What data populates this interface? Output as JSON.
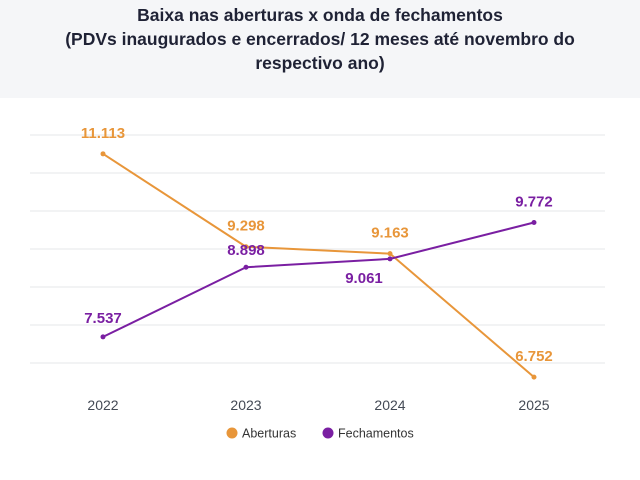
{
  "chart_data": {
    "type": "line",
    "title_lines": [
      "Baixa nas aberturas x onda de fechamentos",
      "(PDVs inaugurados e encerrados/ 12 meses até novembro do",
      "respectivo ano)"
    ],
    "categories": [
      "2022",
      "2023",
      "2024",
      "2025"
    ],
    "ylim": [
      6500,
      11500
    ],
    "grid": true,
    "legend_position": "bottom-center",
    "series": [
      {
        "name": "Aberturas",
        "color": "#e8963a",
        "values": [
          11113,
          9298,
          9163,
          6752
        ],
        "labels": [
          "11.113",
          "9.298",
          "9.163",
          "6.752"
        ]
      },
      {
        "name": "Fechamentos",
        "color": "#7a1fa2",
        "values": [
          7537,
          8898,
          9061,
          9772
        ],
        "labels": [
          "7.537",
          "8.898",
          "9.061",
          "9.772"
        ]
      }
    ]
  }
}
